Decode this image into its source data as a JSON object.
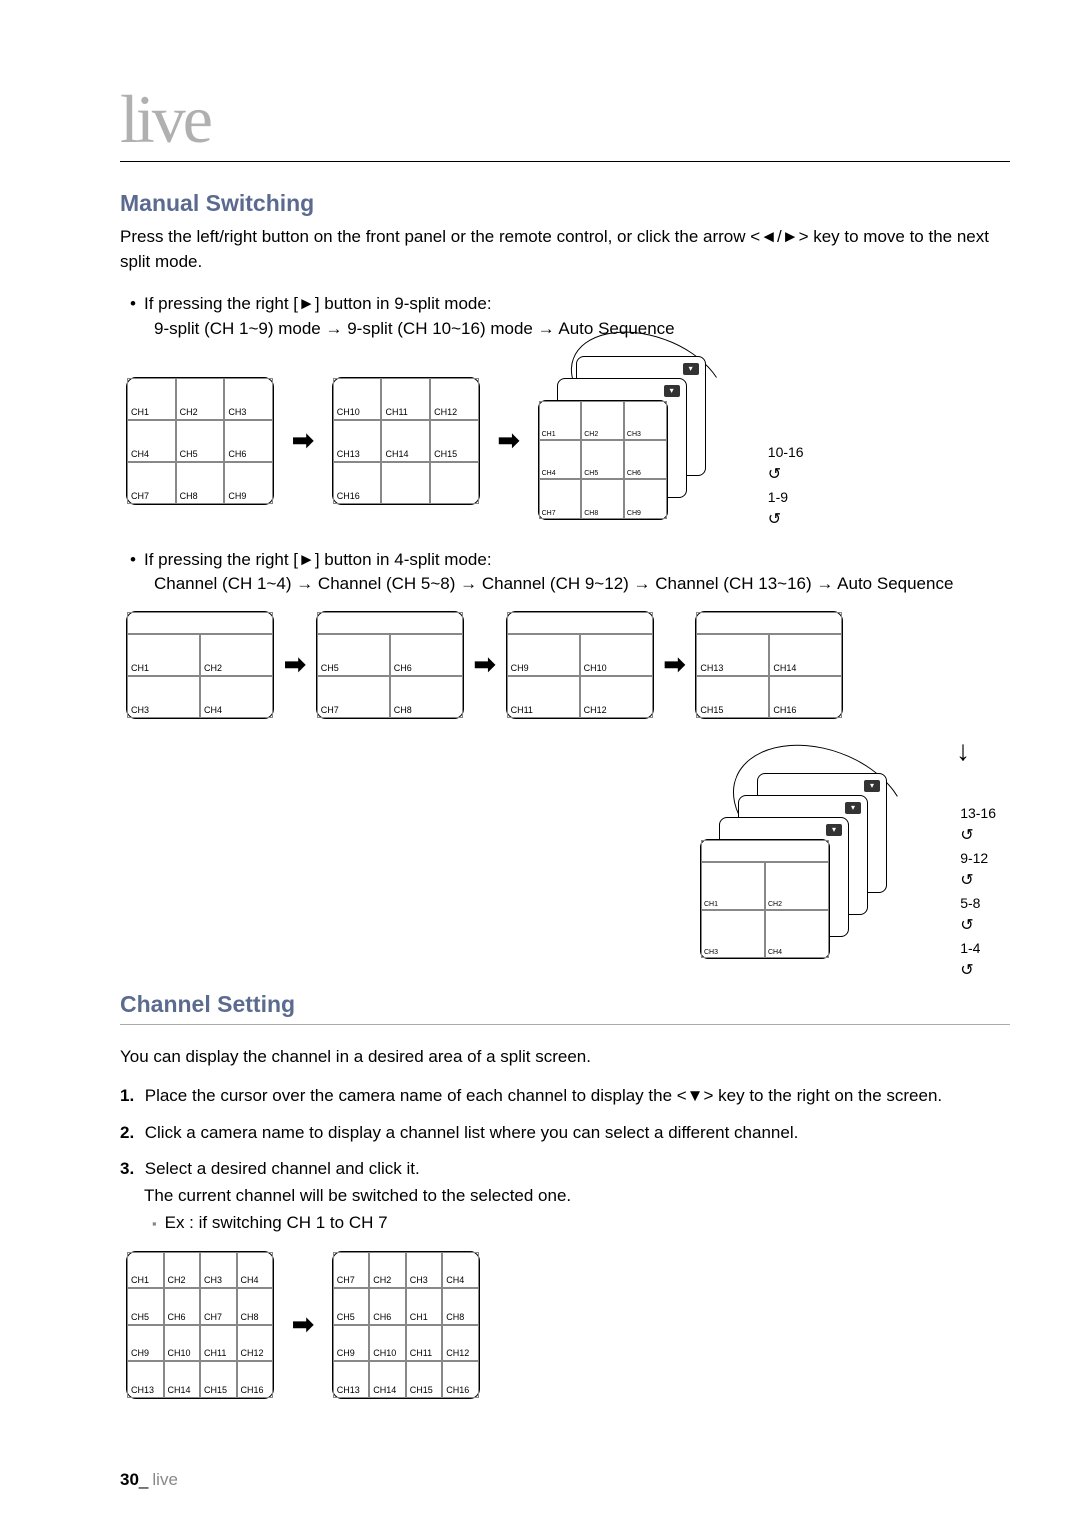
{
  "page_title": "live",
  "sections": {
    "manual_switching": {
      "heading": "Manual Switching",
      "intro": "Press the left/right button on the front panel or the remote control, or click the arrow <◄/►> key to move to the next split mode.",
      "bullet1_line1": "If pressing the right [►] button in 9-split mode:",
      "bullet1_line2": "9-split (CH 1~9) mode → 9-split (CH 10~16) mode → Auto Sequence",
      "bullet2_line1": "If pressing the right [►] button in 4-split mode:",
      "bullet2_line2": "Channel (CH 1~4) → Channel (CH 5~8) → Channel (CH 9~12) → Channel (CH 13~16) → Auto Sequence"
    },
    "channel_setting": {
      "heading": "Channel Setting",
      "intro": "You can display the channel in a desired area of a split screen.",
      "step1": "Place the cursor over the camera name of each channel to display the <▼> key to the right on the screen.",
      "step2": "Click a camera name to display a channel list where you can select a different channel.",
      "step3a": "Select a desired channel and click it.",
      "step3b": "The current channel will be switched to the selected one.",
      "note": "Ex : if switching CH 1 to CH 7"
    }
  },
  "grids": {
    "g9a": [
      "CH1",
      "CH2",
      "CH3",
      "CH4",
      "CH5",
      "CH6",
      "CH7",
      "CH8",
      "CH9"
    ],
    "g9b": [
      "CH10",
      "CH11",
      "CH12",
      "CH13",
      "CH14",
      "CH15",
      "CH16",
      "",
      ""
    ],
    "cascade9_front": [
      "CH1",
      "CH2",
      "CH3",
      "CH4",
      "CH5",
      "CH6",
      "CH7",
      "CH8",
      "CH9"
    ],
    "cascade9_labels": [
      "10-16",
      "1-9"
    ],
    "g4a": [
      "CH1",
      "CH2",
      "CH3",
      "CH4"
    ],
    "g4b": [
      "CH5",
      "CH6",
      "CH7",
      "CH8"
    ],
    "g4c": [
      "CH9",
      "CH10",
      "CH11",
      "CH12"
    ],
    "g4d": [
      "CH13",
      "CH14",
      "CH15",
      "CH16"
    ],
    "cascade4_front": [
      "CH1",
      "CH2",
      "CH3",
      "CH4"
    ],
    "cascade4_labels": [
      "13-16",
      "9-12",
      "5-8",
      "1-4"
    ],
    "g16a": [
      "CH1",
      "CH2",
      "CH3",
      "CH4",
      "CH5",
      "CH6",
      "CH7",
      "CH8",
      "CH9",
      "CH10",
      "CH11",
      "CH12",
      "CH13",
      "CH14",
      "CH15",
      "CH16"
    ],
    "g16b": [
      "CH7",
      "CH2",
      "CH3",
      "CH4",
      "CH5",
      "CH6",
      "CH1",
      "CH8",
      "CH9",
      "CH10",
      "CH11",
      "CH12",
      "CH13",
      "CH14",
      "CH15",
      "CH16"
    ]
  },
  "footer": {
    "page_num": "30",
    "section": "live"
  },
  "ol_labels": {
    "s1": "1.",
    "s2": "2.",
    "s3": "3."
  },
  "glyphs": {
    "bullet": "•",
    "arrow_right": "➡",
    "arrow_down": "↓",
    "loop": "↺",
    "square": "▪",
    "dd": "▾"
  }
}
